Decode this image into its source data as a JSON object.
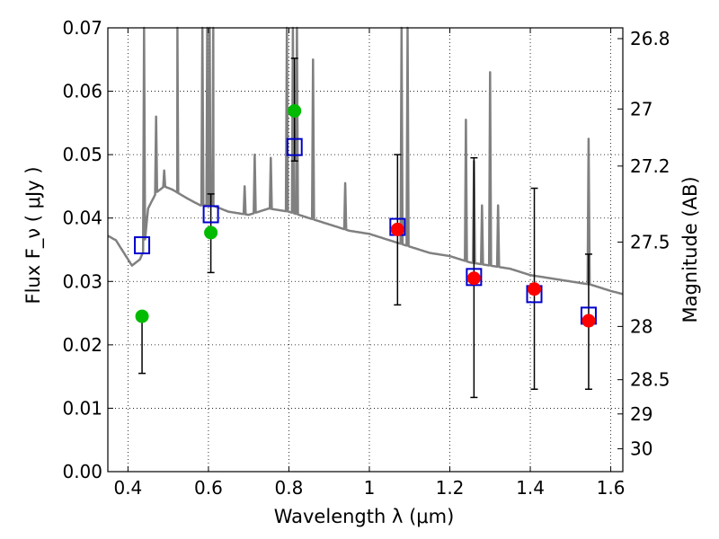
{
  "chart_data": {
    "type": "scatter",
    "title": "",
    "xlabel": "Wavelength  λ (μm)",
    "ylabel": "Flux  F_ν  ( μJy )",
    "y2label": "Magnitude (AB)",
    "xlim": [
      0.35,
      1.63
    ],
    "ylim": [
      0.0,
      0.07
    ],
    "grid": true,
    "x_ticks": [
      0.4,
      0.6,
      0.8,
      1.0,
      1.2,
      1.4,
      1.6
    ],
    "x_tick_labels": [
      "0.4",
      "0.6",
      "0.8",
      "1",
      "1.2",
      "1.4",
      "1.6"
    ],
    "y_ticks": [
      0.0,
      0.01,
      0.02,
      0.03,
      0.04,
      0.05,
      0.06,
      0.07
    ],
    "y_tick_labels": [
      "0.00",
      "0.01",
      "0.02",
      "0.03",
      "0.04",
      "0.05",
      "0.06",
      "0.07"
    ],
    "y2_ticks": [
      {
        "flux": 0.0683,
        "label": "26.8"
      },
      {
        "flux": 0.0572,
        "label": "27"
      },
      {
        "flux": 0.0482,
        "label": "27.2"
      },
      {
        "flux": 0.0362,
        "label": "27.5"
      },
      {
        "flux": 0.0229,
        "label": "28"
      },
      {
        "flux": 0.0145,
        "label": "28.5"
      },
      {
        "flux": 0.0091,
        "label": "29"
      },
      {
        "flux": 0.0036,
        "label": "30"
      }
    ],
    "series": [
      {
        "marker": "open-square",
        "color": "#0000cc",
        "points": [
          {
            "x": 0.435,
            "y": 0.0357
          },
          {
            "x": 0.606,
            "y": 0.0406
          },
          {
            "x": 0.814,
            "y": 0.0512
          },
          {
            "x": 1.07,
            "y": 0.0386
          },
          {
            "x": 1.26,
            "y": 0.0307
          },
          {
            "x": 1.41,
            "y": 0.028
          },
          {
            "x": 1.545,
            "y": 0.0246
          }
        ]
      },
      {
        "marker": "filled-circle",
        "color": "#00bb00",
        "points": [
          {
            "x": 0.435,
            "y": 0.0245,
            "ylow": 0.0155,
            "yhigh": 0.0245
          },
          {
            "x": 0.606,
            "y": 0.0377,
            "ylow": 0.0314,
            "yhigh": 0.0438
          },
          {
            "x": 0.814,
            "y": 0.0569,
            "ylow": 0.049,
            "yhigh": 0.0652
          }
        ]
      },
      {
        "marker": "filled-circle",
        "color": "#ff0000",
        "points": [
          {
            "x": 1.07,
            "y": 0.0382,
            "ylow": 0.0263,
            "yhigh": 0.05
          },
          {
            "x": 1.26,
            "y": 0.0305,
            "ylow": 0.0117,
            "yhigh": 0.0495
          },
          {
            "x": 1.41,
            "y": 0.0288,
            "ylow": 0.013,
            "yhigh": 0.0447
          },
          {
            "x": 1.545,
            "y": 0.0238,
            "ylow": 0.013,
            "yhigh": 0.0343
          }
        ]
      }
    ],
    "template_spectrum": {
      "color": "#808080",
      "continuum": [
        [
          0.35,
          0.0372
        ],
        [
          0.37,
          0.0365
        ],
        [
          0.39,
          0.0345
        ],
        [
          0.41,
          0.0325
        ],
        [
          0.43,
          0.0335
        ],
        [
          0.44,
          0.035
        ],
        [
          0.45,
          0.0415
        ],
        [
          0.47,
          0.044
        ],
        [
          0.49,
          0.045
        ],
        [
          0.51,
          0.0445
        ],
        [
          0.55,
          0.043
        ],
        [
          0.58,
          0.042
        ],
        [
          0.61,
          0.042
        ],
        [
          0.65,
          0.041
        ],
        [
          0.7,
          0.0405
        ],
        [
          0.75,
          0.0415
        ],
        [
          0.8,
          0.041
        ],
        [
          0.85,
          0.04
        ],
        [
          0.9,
          0.039
        ],
        [
          0.95,
          0.038
        ],
        [
          1.0,
          0.0375
        ],
        [
          1.05,
          0.0365
        ],
        [
          1.1,
          0.0355
        ],
        [
          1.15,
          0.0345
        ],
        [
          1.2,
          0.034
        ],
        [
          1.25,
          0.033
        ],
        [
          1.3,
          0.0325
        ],
        [
          1.35,
          0.032
        ],
        [
          1.4,
          0.031
        ],
        [
          1.45,
          0.0305
        ],
        [
          1.5,
          0.03
        ],
        [
          1.55,
          0.0295
        ],
        [
          1.6,
          0.0285
        ],
        [
          1.63,
          0.028
        ]
      ],
      "lines": [
        [
          0.44,
          0.072
        ],
        [
          0.47,
          0.056
        ],
        [
          0.49,
          0.0475
        ],
        [
          0.523,
          0.07
        ],
        [
          0.585,
          0.072
        ],
        [
          0.597,
          0.072
        ],
        [
          0.603,
          0.072
        ],
        [
          0.612,
          0.072
        ],
        [
          0.69,
          0.045
        ],
        [
          0.715,
          0.05
        ],
        [
          0.755,
          0.0495
        ],
        [
          0.795,
          0.072
        ],
        [
          0.81,
          0.072
        ],
        [
          0.82,
          0.072
        ],
        [
          0.86,
          0.065
        ],
        [
          0.94,
          0.0455
        ],
        [
          1.08,
          0.072
        ],
        [
          1.095,
          0.072
        ],
        [
          1.24,
          0.0555
        ],
        [
          1.26,
          0.049
        ],
        [
          1.28,
          0.042
        ],
        [
          1.3,
          0.063
        ],
        [
          1.32,
          0.042
        ],
        [
          1.545,
          0.0525
        ]
      ]
    }
  }
}
